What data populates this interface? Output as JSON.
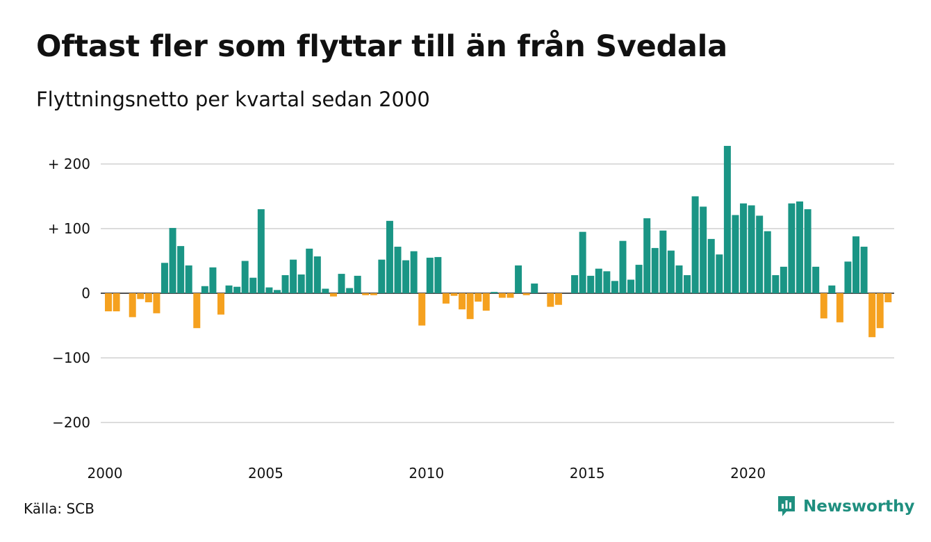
{
  "header": {
    "title": "Oftast fler som flyttar till än från Svedala",
    "subtitle": "Flyttningsnetto per kvartal sedan 2000"
  },
  "footer": {
    "source": "Källa: SCB",
    "brand": "Newsworthy",
    "brand_icon": "bar-chart-speech-bubble-icon"
  },
  "colors": {
    "positive": "#1a9585",
    "negative": "#f5a11f",
    "grid": "#dcdcdc",
    "axis": "#222222",
    "brand": "#1f8f7f"
  },
  "chart_data": {
    "type": "bar",
    "x_start": "2000 Q1",
    "period": "quarter",
    "values": [
      -28,
      -28,
      0,
      -37,
      -9,
      -14,
      -31,
      47,
      101,
      73,
      43,
      -54,
      11,
      40,
      -33,
      12,
      10,
      50,
      24,
      130,
      9,
      5,
      28,
      52,
      29,
      69,
      57,
      7,
      -5,
      30,
      8,
      27,
      -3,
      -3,
      52,
      112,
      72,
      51,
      65,
      -50,
      55,
      56,
      -16,
      -4,
      -25,
      -40,
      -13,
      -27,
      2,
      -7,
      -7,
      43,
      -3,
      15,
      0,
      -21,
      -18,
      0,
      28,
      95,
      27,
      38,
      34,
      19,
      81,
      21,
      44,
      116,
      70,
      97,
      66,
      43,
      28,
      150,
      134,
      84,
      60,
      228,
      121,
      139,
      136,
      120,
      96,
      28,
      41,
      139,
      142,
      130,
      41,
      -39,
      12,
      -45,
      49,
      88,
      72,
      -68,
      -54,
      -14
    ],
    "x_ticks": [
      "2000",
      "2005",
      "2010",
      "2015",
      "2020"
    ],
    "y_ticks": [
      200,
      100,
      0,
      -100,
      -200
    ],
    "y_tick_labels": [
      "+ 200",
      "+ 100",
      "0",
      "−100",
      "−200"
    ],
    "ylim": [
      -240,
      240
    ],
    "grid": true,
    "legend": "none"
  }
}
